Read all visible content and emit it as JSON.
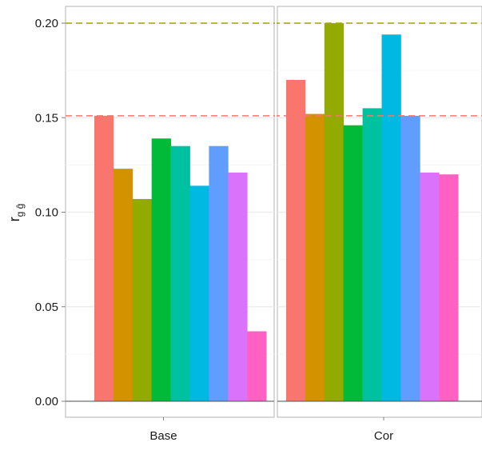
{
  "chart_data": {
    "type": "bar",
    "ylabel": {
      "main": "r",
      "sub": "g ĝ"
    },
    "ylim": [
      0,
      0.21
    ],
    "yticks": [
      "0.00",
      "0.05",
      "0.10",
      "0.15",
      "0.20"
    ],
    "ytick_values": [
      0,
      0.05,
      0.1,
      0.15,
      0.2
    ],
    "grid": true,
    "panels": [
      {
        "name": "Base",
        "values": [
          0.151,
          0.123,
          0.107,
          0.139,
          0.135,
          0.114,
          0.135,
          0.121,
          0.037
        ],
        "hline": {
          "value": 0.151,
          "color": "#F8766D"
        }
      },
      {
        "name": "Cor",
        "values": [
          0.17,
          0.152,
          0.2,
          0.146,
          0.155,
          0.194,
          0.151,
          0.121,
          0.12
        ],
        "hline": {
          "value": 0.2,
          "color": "#A3A500"
        }
      }
    ],
    "series_colors": [
      "#F8766D",
      "#D39200",
      "#93AA00",
      "#00BA38",
      "#00C19F",
      "#00B9E3",
      "#619CFF",
      "#DB72FB",
      "#FF61C3"
    ]
  }
}
